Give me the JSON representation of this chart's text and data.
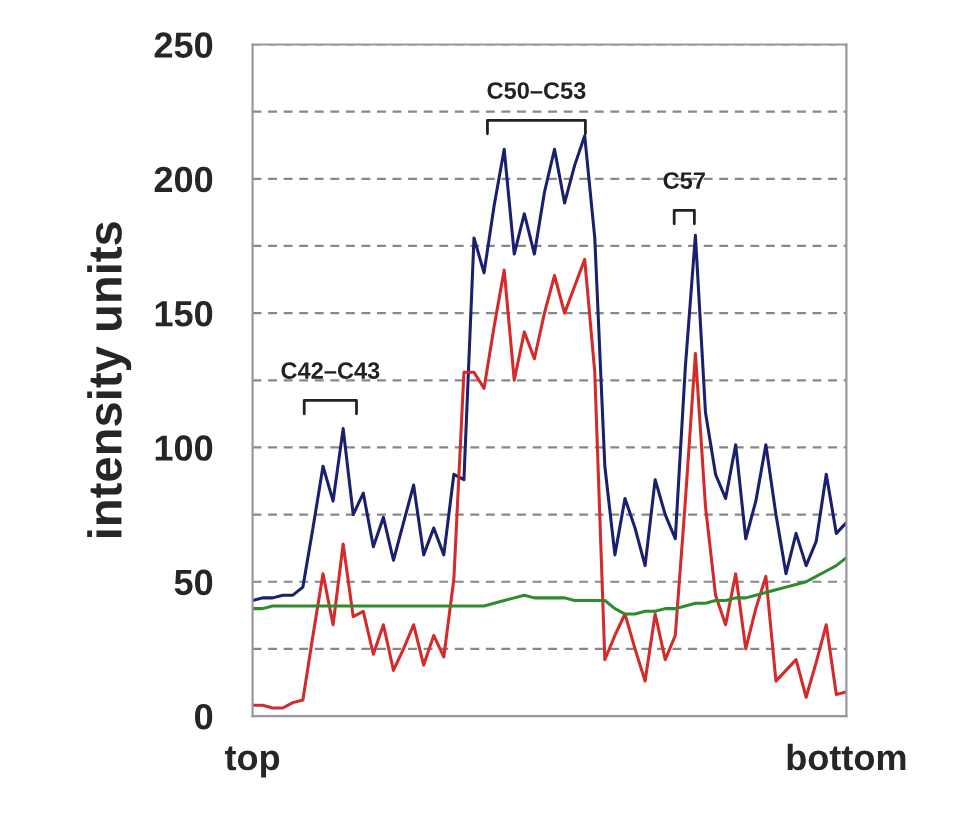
{
  "chart_data": {
    "type": "line",
    "ylabel": "intensity units",
    "categories": [
      "top",
      null,
      null,
      null,
      null,
      null,
      null,
      null,
      null,
      null,
      null,
      null,
      null,
      null,
      null,
      null,
      null,
      null,
      null,
      null,
      null,
      null,
      null,
      null,
      null,
      null,
      null,
      null,
      null,
      null,
      null,
      null,
      null,
      null,
      null,
      null,
      null,
      null,
      null,
      null,
      null,
      null,
      null,
      null,
      null,
      null,
      null,
      null,
      null,
      null,
      null,
      null,
      null,
      null,
      null,
      null,
      null,
      null,
      null,
      "bottom"
    ],
    "ylim": [
      0,
      250
    ],
    "yticks": [
      0,
      {
        "value": 25,
        "label": null
      },
      50,
      {
        "value": 75,
        "label": null
      },
      100,
      {
        "value": 125,
        "label": null
      },
      150,
      {
        "value": 175,
        "label": null
      },
      200,
      {
        "value": 225,
        "label": null
      },
      250
    ],
    "grid": "y",
    "line_style": "solid",
    "marker": "none",
    "legend": false,
    "series": [
      {
        "color": "#1a1f6e",
        "values": [
          43,
          44,
          44,
          45,
          45,
          48,
          70,
          93,
          80,
          107,
          75,
          83,
          63,
          74,
          58,
          72,
          86,
          60,
          70,
          60,
          90,
          88,
          178,
          165,
          190,
          211,
          172,
          187,
          172,
          195,
          211,
          191,
          205,
          216,
          178,
          93,
          60,
          81,
          70,
          56,
          88,
          75,
          66,
          130,
          179,
          113,
          90,
          81,
          101,
          66,
          80,
          101,
          75,
          53,
          68,
          56,
          65,
          90,
          68,
          72
        ]
      },
      {
        "color": "#d42a2a",
        "values": [
          4,
          4,
          3,
          3,
          5,
          6,
          30,
          53,
          34,
          64,
          37,
          39,
          23,
          34,
          17,
          25,
          34,
          19,
          30,
          22,
          51,
          128,
          128,
          122,
          145,
          166,
          125,
          143,
          133,
          150,
          164,
          150,
          160,
          170,
          128,
          21,
          30,
          38,
          25,
          13,
          38,
          21,
          30,
          80,
          135,
          78,
          45,
          34,
          53,
          25,
          40,
          52,
          13,
          17,
          21,
          7,
          20,
          34,
          8,
          9
        ]
      },
      {
        "color": "#2e8b2e",
        "values": [
          40,
          40,
          41,
          41,
          41,
          41,
          41,
          41,
          41,
          41,
          41,
          41,
          41,
          41,
          41,
          41,
          41,
          41,
          41,
          41,
          41,
          41,
          41,
          41,
          42,
          43,
          44,
          45,
          44,
          44,
          44,
          44,
          43,
          43,
          43,
          43,
          40,
          38,
          38,
          39,
          39,
          40,
          40,
          41,
          42,
          42,
          43,
          43,
          44,
          44,
          45,
          46,
          47,
          48,
          49,
          50,
          52,
          54,
          56,
          59
        ]
      }
    ],
    "annotations": [
      "C42–C43",
      "C50–C53",
      "C57"
    ]
  }
}
